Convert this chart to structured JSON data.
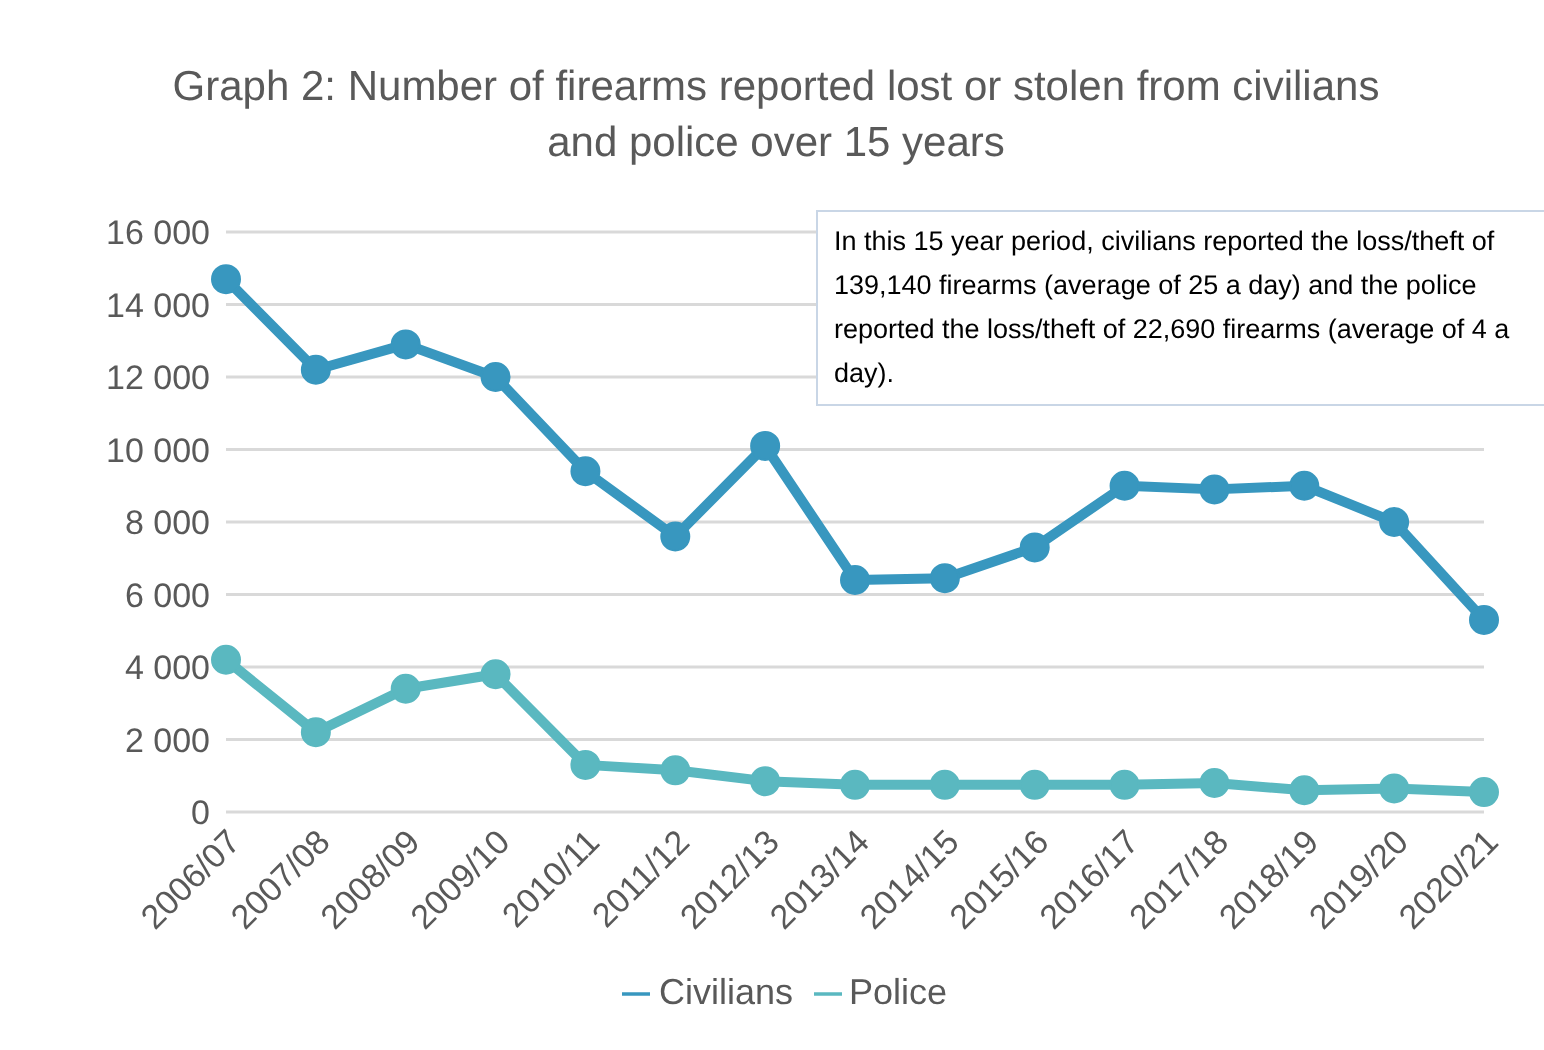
{
  "chart_data": {
    "type": "line",
    "title": "Graph 2: Number of firearms reported lost or stolen from civilians and police over 15 years",
    "categories": [
      "2006/07",
      "2007/08",
      "2008/09",
      "2009/10",
      "2010/11",
      "2011/12",
      "2012/13",
      "2013/14",
      "2014/15",
      "2015/16",
      "2016/17",
      "2017/18",
      "2018/19",
      "2019/20",
      "2020/21"
    ],
    "series": [
      {
        "name": "Civilians",
        "color": "#3897bf",
        "values": [
          14700,
          12200,
          12900,
          12000,
          9400,
          7600,
          10100,
          6400,
          6450,
          7300,
          9000,
          8900,
          9000,
          8000,
          5300
        ]
      },
      {
        "name": "Police",
        "color": "#5ab8c0",
        "values": [
          4200,
          2200,
          3400,
          3800,
          1300,
          1150,
          850,
          750,
          750,
          750,
          750,
          800,
          600,
          650,
          550
        ]
      }
    ],
    "ylim": [
      0,
      16000
    ],
    "yticks": [
      0,
      {
        "value": 2000,
        "label": "2 000"
      },
      {
        "value": 4000,
        "label": "4 000"
      },
      {
        "value": 6000,
        "label": "6 000"
      },
      {
        "value": 8000,
        "label": "8 000"
      },
      {
        "value": 10000,
        "label": "10 000"
      },
      {
        "value": 12000,
        "label": "12 000"
      },
      {
        "value": 14000,
        "label": "14 000"
      },
      {
        "value": 16000,
        "label": "16 000"
      }
    ],
    "grid": "y",
    "legend": "bottom",
    "marker": "circle",
    "line_style": "solid",
    "annotations": [
      "In this 15 year period, civilians reported the loss/theft of 139,140 firearms (average of 25 a day) and the police reported the loss/theft of 22,690 firearms (average of 4 a day)."
    ]
  }
}
